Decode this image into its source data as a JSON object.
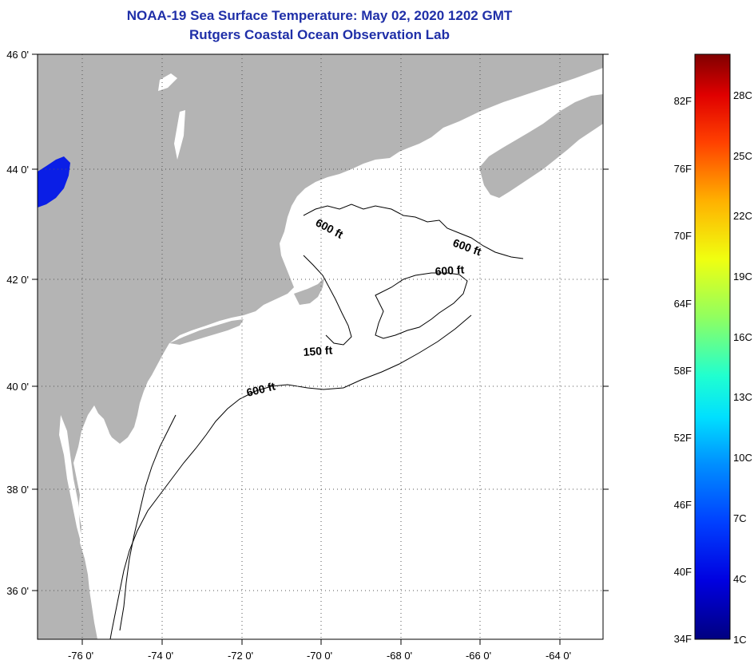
{
  "header": {
    "title": "NOAA-19 Sea Surface Temperature:  May 02, 2020 1202 GMT",
    "subtitle": "Rutgers Coastal Ocean Observation Lab"
  },
  "map": {
    "lat_labels": [
      "46 0'",
      "44 0'",
      "42 0'",
      "40 0'",
      "38 0'",
      "36 0'"
    ],
    "lon_labels": [
      "-76 0'",
      "-74 0'",
      "-72 0'",
      "-70 0'",
      "-68 0'",
      "-66 0'",
      "-64 0'"
    ],
    "contour_labels": {
      "gulf_west_600": "600 ft",
      "gulf_east_600": "600 ft",
      "georges_600": "600 ft",
      "cape_cod_150": "150 ft",
      "shelf_600": "600 ft"
    },
    "colors": {
      "land": "#b4b4b4",
      "ocean": "#ffffff",
      "lake": "#0a1ee6",
      "contour": "#000000",
      "grid": "#555555"
    }
  },
  "colorbar": {
    "fahrenheit_labels": [
      "82F",
      "76F",
      "70F",
      "64F",
      "58F",
      "52F",
      "46F",
      "40F",
      "34F"
    ],
    "celsius_labels": [
      "28C",
      "25C",
      "22C",
      "19C",
      "16C",
      "13C",
      "10C",
      "7C",
      "4C",
      "1C"
    ]
  }
}
